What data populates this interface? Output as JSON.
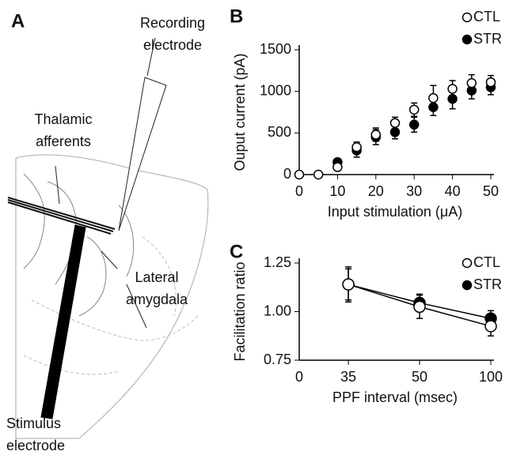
{
  "panel_a": {
    "label": "A",
    "recording": [
      "Recording",
      "electrode"
    ],
    "thalamic": [
      "Thalamic",
      "afferents"
    ],
    "lateral": [
      "Lateral",
      "amygdala"
    ],
    "stimulus": [
      "Stimulus",
      "electrode"
    ]
  },
  "chart_data": [
    {
      "type": "errorbar",
      "panel": "B",
      "x_label": "Input stimulation (μA)",
      "y_label": "Ouput current (pA)",
      "x": [
        0,
        5,
        10,
        15,
        20,
        25,
        30,
        35,
        40,
        45,
        50
      ],
      "xlim": [
        0,
        50
      ],
      "xticks": [
        0,
        10,
        20,
        30,
        40,
        50
      ],
      "ylim": [
        0,
        1500
      ],
      "yticks": [
        0,
        500,
        1000,
        1500
      ],
      "lines": false,
      "legend": "upper right",
      "series": [
        {
          "name": "STR",
          "color": "#000000",
          "filled": true,
          "values": [
            null,
            null,
            150,
            290,
            450,
            510,
            600,
            810,
            910,
            1010,
            1050
          ],
          "errors": [
            null,
            null,
            40,
            80,
            90,
            80,
            90,
            100,
            120,
            100,
            90
          ]
        },
        {
          "name": "CTL",
          "color": "#000000",
          "filled": false,
          "values": [
            0,
            0,
            90,
            330,
            480,
            620,
            780,
            920,
            1030,
            1100,
            1110
          ],
          "errors": [
            0,
            0,
            30,
            60,
            80,
            70,
            80,
            150,
            100,
            100,
            80
          ]
        }
      ]
    },
    {
      "type": "errorbar",
      "panel": "C",
      "x_label": "PPF interval (msec)",
      "y_label": "Facilitation ratio",
      "x_origin_label": "0",
      "categories": [
        "35",
        "50",
        "100"
      ],
      "ylim": [
        0.75,
        1.25
      ],
      "yticks": [
        0.75,
        {
          "value": 1,
          "label": "1.00"
        },
        1.25
      ],
      "lines": true,
      "legend": "upper right",
      "series": [
        {
          "name": "STR",
          "color": "#000000",
          "filled": true,
          "values": [
            1.14,
            1.045,
            0.965
          ],
          "errors": [
            0.09,
            0.045,
            0.04
          ]
        },
        {
          "name": "CTL",
          "color": "#000000",
          "filled": false,
          "values": [
            1.14,
            1.025,
            0.925
          ],
          "errors": [
            0.08,
            0.06,
            0.05
          ]
        }
      ]
    }
  ]
}
